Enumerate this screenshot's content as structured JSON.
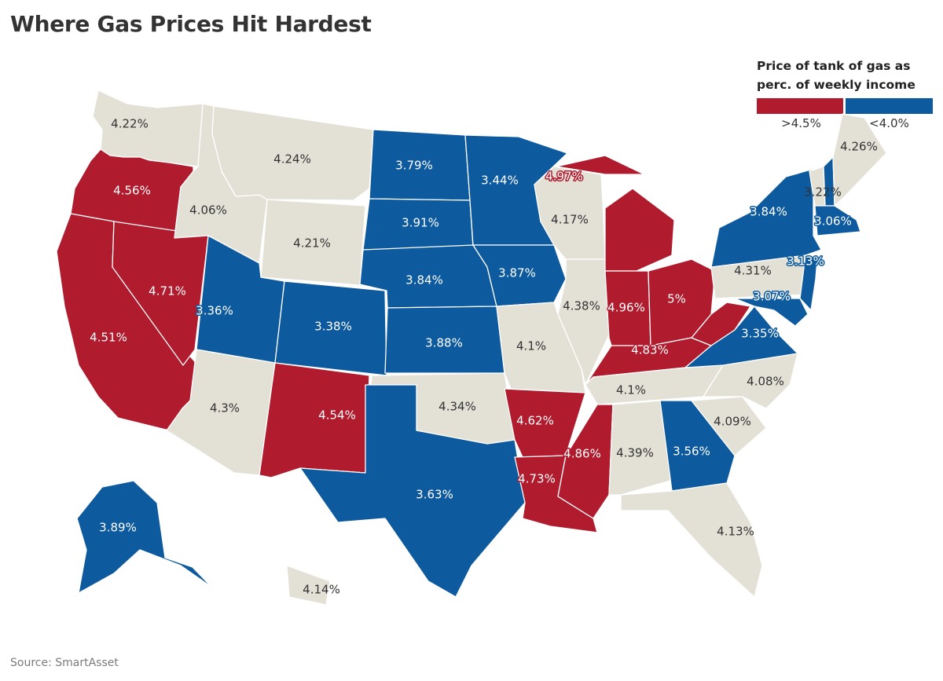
{
  "title": "Where Gas Prices Hit Hardest",
  "source": "Source: SmartAsset",
  "legend": {
    "title_line1": "Price of tank of gas as",
    "title_line2": "perc. of weekly income",
    "high_label": ">4.5%",
    "low_label": "<4.0%"
  },
  "colors": {
    "high": "#b01c2e",
    "low": "#0e5a9f",
    "mid": "#e3e0d6"
  },
  "states": {
    "WA": "4.22%",
    "OR": "4.56%",
    "CA": "4.51%",
    "NV": "4.71%",
    "ID": "4.06%",
    "MT": "4.24%",
    "WY": "4.21%",
    "UT": "3.36%",
    "AZ": "4.3%",
    "CO": "3.38%",
    "NM": "4.54%",
    "ND": "3.79%",
    "SD": "3.91%",
    "NE": "3.84%",
    "KS": "3.88%",
    "OK": "4.34%",
    "TX": "3.63%",
    "MN": "3.44%",
    "IA": "3.87%",
    "MO": "4.1%",
    "AR": "4.62%",
    "LA": "4.73%",
    "WI": "4.17%",
    "IL": "4.38%",
    "MI": "4.97%",
    "IN": "4.96%",
    "OH": "5%",
    "KY": "4.83%",
    "TN": "4.1%",
    "MS": "4.86%",
    "AL": "4.39%",
    "GA": "3.56%",
    "FL": "4.13%",
    "SC": "4.09%",
    "NC": "4.08%",
    "VA": "3.35%",
    "WV": "",
    "PA": "4.31%",
    "NY": "3.84%",
    "VT": "3.22%",
    "NH": "",
    "ME": "4.26%",
    "MA": "3.06%",
    "NJ": "3.13%",
    "MD": "3.07%",
    "AK": "3.89%",
    "HI": "4.14%"
  },
  "chart_data": {
    "type": "choropleth",
    "title": "Where Gas Prices Hit Hardest",
    "legend_title": "Price of tank of gas as perc. of weekly income",
    "bins": [
      {
        "label": ">4.5%",
        "color": "#b01c2e"
      },
      {
        "label": "<4.0%",
        "color": "#0e5a9f"
      }
    ],
    "values": {
      "WA": 4.22,
      "OR": 4.56,
      "CA": 4.51,
      "NV": 4.71,
      "ID": 4.06,
      "MT": 4.24,
      "WY": 4.21,
      "UT": 3.36,
      "AZ": 4.3,
      "CO": 3.38,
      "NM": 4.54,
      "ND": 3.79,
      "SD": 3.91,
      "NE": 3.84,
      "KS": 3.88,
      "OK": 4.34,
      "TX": 3.63,
      "MN": 3.44,
      "IA": 3.87,
      "MO": 4.1,
      "AR": 4.62,
      "LA": 4.73,
      "WI": 4.17,
      "IL": 4.38,
      "MI": 4.97,
      "IN": 4.96,
      "OH": 5,
      "KY": 4.83,
      "TN": 4.1,
      "MS": 4.86,
      "AL": 4.39,
      "GA": 3.56,
      "FL": 4.13,
      "SC": 4.09,
      "NC": 4.08,
      "VA": 3.35,
      "PA": 4.31,
      "NY": 3.84,
      "VT": 3.22,
      "ME": 4.26,
      "MA": 3.06,
      "NJ": 3.13,
      "MD": 3.07,
      "AK": 3.89,
      "HI": 4.14
    }
  }
}
